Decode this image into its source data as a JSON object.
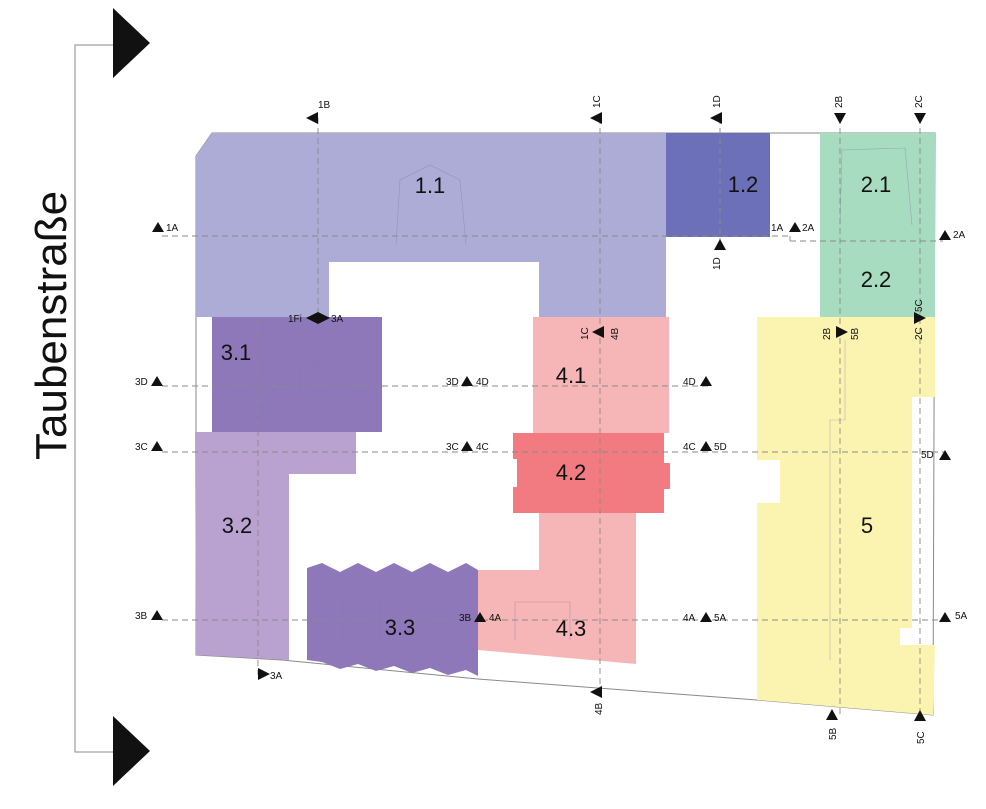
{
  "street": {
    "name": "Taubenstraße"
  },
  "zones": [
    {
      "id": "z11",
      "label": "1.1",
      "color": "#acacd6"
    },
    {
      "id": "z12",
      "label": "1.2",
      "color": "#6b70b8"
    },
    {
      "id": "z21",
      "label": "2.1",
      "color": "#a8dcc0"
    },
    {
      "id": "z22",
      "label": "2.2",
      "color": "#a8dcc0"
    },
    {
      "id": "z31",
      "label": "3.1",
      "color": "#8f78ba"
    },
    {
      "id": "z32",
      "label": "3.2",
      "color": "#b9a2cf"
    },
    {
      "id": "z33",
      "label": "3.3",
      "color": "#8f78ba"
    },
    {
      "id": "z41",
      "label": "4.1",
      "color": "#f6b6b8"
    },
    {
      "id": "z42",
      "label": "4.2",
      "color": "#f17b80"
    },
    {
      "id": "z43",
      "label": "4.3",
      "color": "#f6b6b8"
    },
    {
      "id": "z5",
      "label": "5",
      "color": "#fbf4b0"
    }
  ],
  "markers": [
    {
      "id": "m1B",
      "label": "1B",
      "dir": "left"
    },
    {
      "id": "m1Ct",
      "label": "1C",
      "dir": "left"
    },
    {
      "id": "m1Dt",
      "label": "1D",
      "dir": "left"
    },
    {
      "id": "m2Bt",
      "label": "2B",
      "dir": "down"
    },
    {
      "id": "m2Ct",
      "label": "2C",
      "dir": "down"
    },
    {
      "id": "m1Al",
      "label": "1A",
      "dir": "up"
    },
    {
      "id": "m1Ar",
      "label": "1A",
      "dir": "up"
    },
    {
      "id": "m2Al",
      "label": "2A",
      "dir": "up"
    },
    {
      "id": "m2Ar",
      "label": "2A",
      "dir": "up"
    },
    {
      "id": "m1Db",
      "label": "1D",
      "dir": "up"
    },
    {
      "id": "m1Fi",
      "label": "1Fi",
      "dir": "diamond"
    },
    {
      "id": "m3Atop",
      "label": "3A",
      "dir": "none"
    },
    {
      "id": "m1Cm",
      "label": "1C",
      "dir": "left"
    },
    {
      "id": "m4Bm",
      "label": "4B",
      "dir": "none"
    },
    {
      "id": "m2Bm",
      "label": "2B",
      "dir": "right"
    },
    {
      "id": "m5Bm",
      "label": "5B",
      "dir": "none"
    },
    {
      "id": "m5Cm",
      "label": "5C",
      "dir": "right"
    },
    {
      "id": "m2Cm",
      "label": "2C",
      "dir": "right"
    },
    {
      "id": "m3Dl",
      "label": "3D",
      "dir": "up"
    },
    {
      "id": "m3Dm",
      "label": "3D",
      "dir": "up"
    },
    {
      "id": "m4Dm",
      "label": "4D",
      "dir": "none"
    },
    {
      "id": "m4Dr",
      "label": "4D",
      "dir": "up"
    },
    {
      "id": "m3Cl",
      "label": "3C",
      "dir": "up"
    },
    {
      "id": "m3Cm",
      "label": "3C",
      "dir": "up"
    },
    {
      "id": "m4Cm",
      "label": "4C",
      "dir": "none"
    },
    {
      "id": "m4Cr",
      "label": "4C",
      "dir": "up"
    },
    {
      "id": "m5Dm",
      "label": "5D",
      "dir": "none"
    },
    {
      "id": "m5Dr",
      "label": "5D",
      "dir": "up"
    },
    {
      "id": "m3Bl",
      "label": "3B",
      "dir": "up"
    },
    {
      "id": "m3Bm",
      "label": "3B",
      "dir": "up"
    },
    {
      "id": "m4Am",
      "label": "4A",
      "dir": "none"
    },
    {
      "id": "m4Ar",
      "label": "4A",
      "dir": "up"
    },
    {
      "id": "m5Am",
      "label": "5A",
      "dir": "none"
    },
    {
      "id": "m5Ar",
      "label": "5A",
      "dir": "up"
    },
    {
      "id": "m3Ab",
      "label": "3A",
      "dir": "right"
    },
    {
      "id": "m4Bb",
      "label": "4B",
      "dir": "left"
    },
    {
      "id": "m5Bb",
      "label": "5B",
      "dir": "up"
    },
    {
      "id": "m5Cb",
      "label": "5C",
      "dir": "up"
    }
  ]
}
